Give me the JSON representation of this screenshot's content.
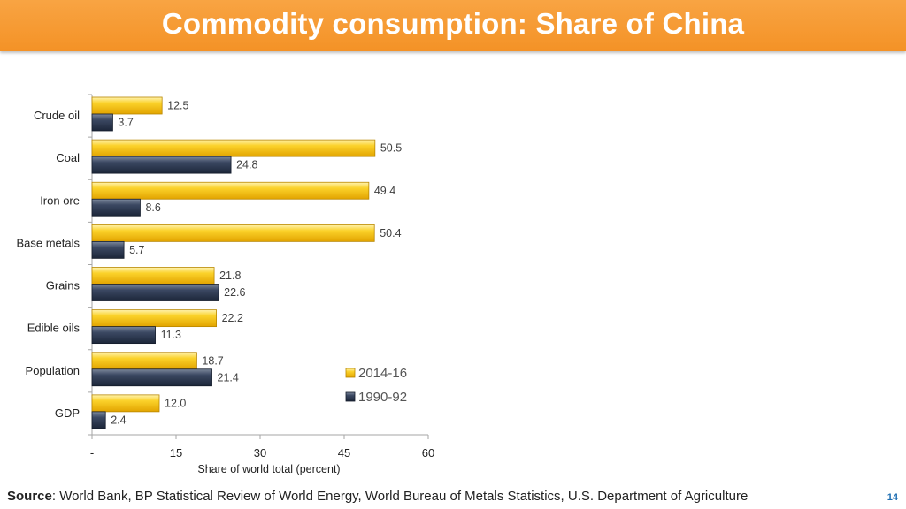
{
  "header": {
    "title": "Commodity consumption: Share of China"
  },
  "chart_data": {
    "type": "bar",
    "orientation": "horizontal",
    "title": "",
    "categories": [
      "Crude oil",
      "Coal",
      "Iron ore",
      "Base metals",
      "Grains",
      "Edible oils",
      "Population",
      "GDP"
    ],
    "series": [
      {
        "name": "2014-16",
        "color": "#f5b800",
        "values": [
          12.5,
          50.5,
          49.4,
          50.4,
          21.8,
          22.2,
          18.7,
          12.0
        ],
        "labels": [
          "12.5",
          "50.5",
          "49.4",
          "50.4",
          "21.8",
          "22.2",
          "18.7",
          "12.0"
        ]
      },
      {
        "name": "1990-92",
        "color": "#2b3850",
        "values": [
          3.7,
          24.8,
          8.6,
          5.7,
          22.6,
          11.3,
          21.4,
          2.4
        ],
        "labels": [
          "3.7",
          "24.8",
          "8.6",
          "5.7",
          "22.6",
          "11.3",
          "21.4",
          "2.4"
        ]
      }
    ],
    "xlabel": "Share of world total (percent)",
    "ylabel": "",
    "xlim": [
      0,
      60
    ],
    "xticks": [
      0,
      15,
      30,
      45,
      60
    ],
    "xtick_labels": [
      "-",
      "15",
      "30",
      "45",
      "60"
    ],
    "legend": "bottom-right"
  },
  "footer": {
    "source_label": "Source",
    "source_text": ": World Bank, BP Statistical Review of World Energy, World Bureau of Metals Statistics, U.S. Department of Agriculture",
    "page_number": "14"
  }
}
